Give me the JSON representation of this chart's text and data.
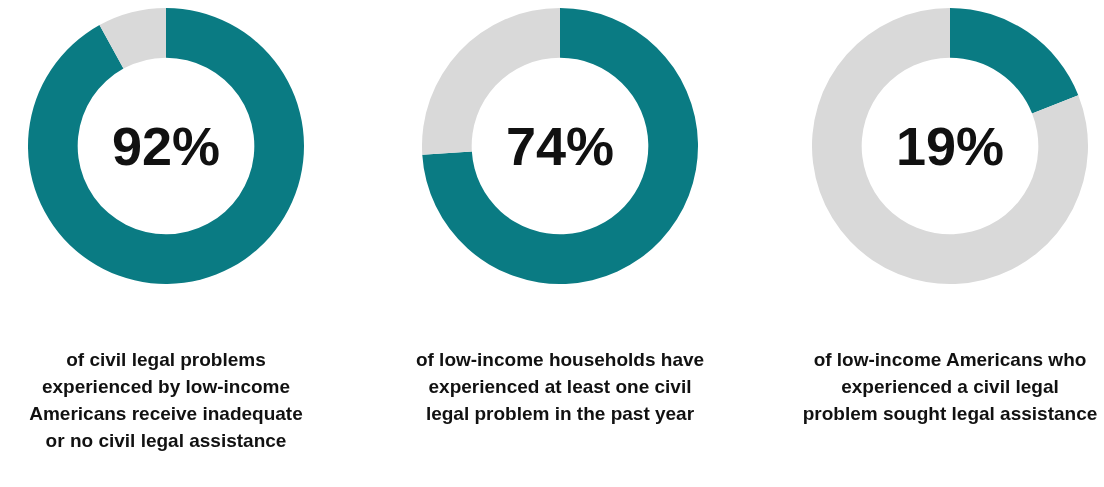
{
  "chart_data": [
    {
      "type": "donut",
      "categories": [
        null,
        null
      ],
      "values": [
        92,
        8
      ],
      "colors": [
        "#0a7b83",
        "#d9d9d9"
      ],
      "title": "92%",
      "annotations": [
        "of civil legal problems experienced by low-income Americans receive inadequate or no civil legal assistance"
      ]
    },
    {
      "type": "donut",
      "categories": [
        null,
        null
      ],
      "values": [
        74,
        26
      ],
      "colors": [
        "#0a7b83",
        "#d9d9d9"
      ],
      "title": "74%",
      "annotations": [
        "of low-income households have experienced at least one civil legal problem in the past year"
      ]
    },
    {
      "type": "donut",
      "categories": [
        null,
        null
      ],
      "values": [
        19,
        81
      ],
      "colors": [
        "#0a7b83",
        "#d9d9d9"
      ],
      "title": "19%",
      "annotations": [
        "of low-income Americans who experienced a civil legal problem sought legal assistance"
      ]
    }
  ]
}
